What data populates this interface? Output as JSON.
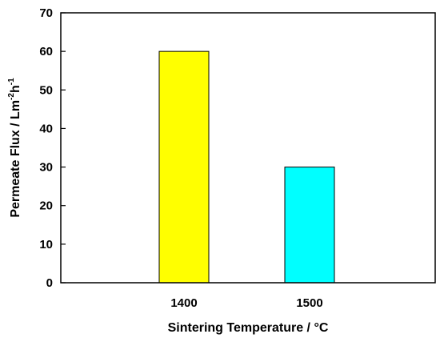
{
  "chart_data": {
    "type": "bar",
    "categories": [
      "1400",
      "1500"
    ],
    "values": [
      60,
      30
    ],
    "bar_colors": [
      "#FFFF00",
      "#00FFFF"
    ],
    "xlabel": "Sintering Temperature / °C",
    "ylabel": {
      "main": "Permeate Flux / Lm",
      "sup1": "-2",
      "mid": "h",
      "sup2": "-1"
    },
    "ylim": [
      0,
      70
    ],
    "yticks": [
      "0",
      "10",
      "20",
      "30",
      "40",
      "50",
      "60",
      "70"
    ],
    "grid": false,
    "legend": "none"
  }
}
